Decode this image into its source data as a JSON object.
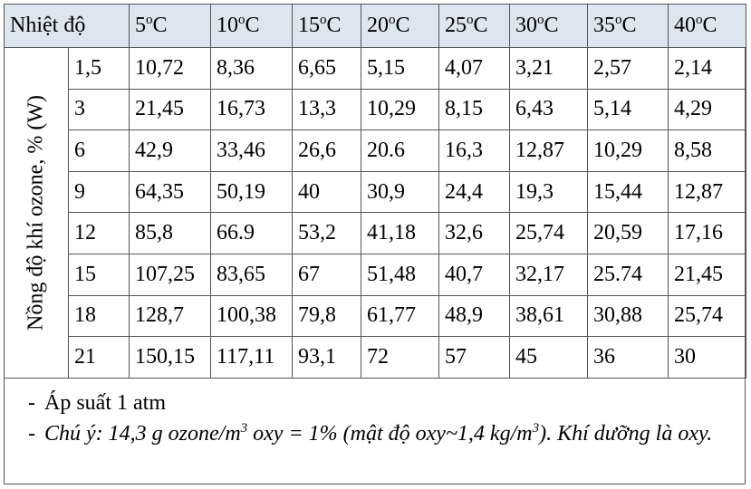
{
  "table": {
    "corner": "Nhiệt độ",
    "side_label": "Nồng độ khí ozone, % (W)",
    "columns": [
      {
        "value": "5",
        "sup": "o",
        "unit": "C"
      },
      {
        "value": "10",
        "sup": "o",
        "unit": "C"
      },
      {
        "value": "15",
        "sup": "o",
        "unit": "C"
      },
      {
        "value": "20",
        "sup": "o",
        "unit": "C"
      },
      {
        "value": "25",
        "sup": "o",
        "unit": "C"
      },
      {
        "value": "30",
        "sup": "o",
        "unit": "C"
      },
      {
        "value": "35",
        "sup": "o",
        "unit": "C"
      },
      {
        "value": "40",
        "sup": "o",
        "unit": "C"
      }
    ],
    "rows": [
      [
        "1,5",
        "10,72",
        "8,36",
        "6,65",
        "5,15",
        "4,07",
        "3,21",
        "2,57",
        "2,14"
      ],
      [
        "3",
        "21,45",
        "16,73",
        "13,3",
        "10,29",
        "8,15",
        "6,43",
        "5,14",
        "4,29"
      ],
      [
        "6",
        "42,9",
        "33,46",
        "26,6",
        "20.6",
        "16,3",
        "12,87",
        "10,29",
        "8,58"
      ],
      [
        "9",
        "64,35",
        "50,19",
        "40",
        "30,9",
        "24,4",
        "19,3",
        "15,44",
        "12,87"
      ],
      [
        "12",
        "85,8",
        "66.9",
        "53,2",
        "41,18",
        "32,6",
        "25,74",
        "20,59",
        "17,16"
      ],
      [
        "15",
        "107,25",
        "83,65",
        "67",
        "51,48",
        "40,7",
        "32,17",
        "25.74",
        "21,45"
      ],
      [
        "18",
        "128,7",
        "100,38",
        "79,8",
        "61,77",
        "48,9",
        "38,61",
        "30,88",
        "25,74"
      ],
      [
        "21",
        "150,15",
        "117,11",
        "93,1",
        "72",
        "57",
        "45",
        "36",
        "30"
      ]
    ]
  },
  "notes": [
    {
      "marker": "-",
      "segments": [
        {
          "text": "Áp suất 1 atm",
          "sup": false
        }
      ]
    },
    {
      "marker": "-",
      "segments": [
        {
          "text": "Chú ý: 14,3 g ozone/m",
          "sup": false
        },
        {
          "text": "3",
          "sup": true
        },
        {
          "text": " oxy = 1% (mật độ oxy~1,4 kg/m",
          "sup": false
        },
        {
          "text": "3",
          "sup": true
        },
        {
          "text": "). Khí dưỡng là oxy.",
          "sup": false
        }
      ]
    }
  ]
}
